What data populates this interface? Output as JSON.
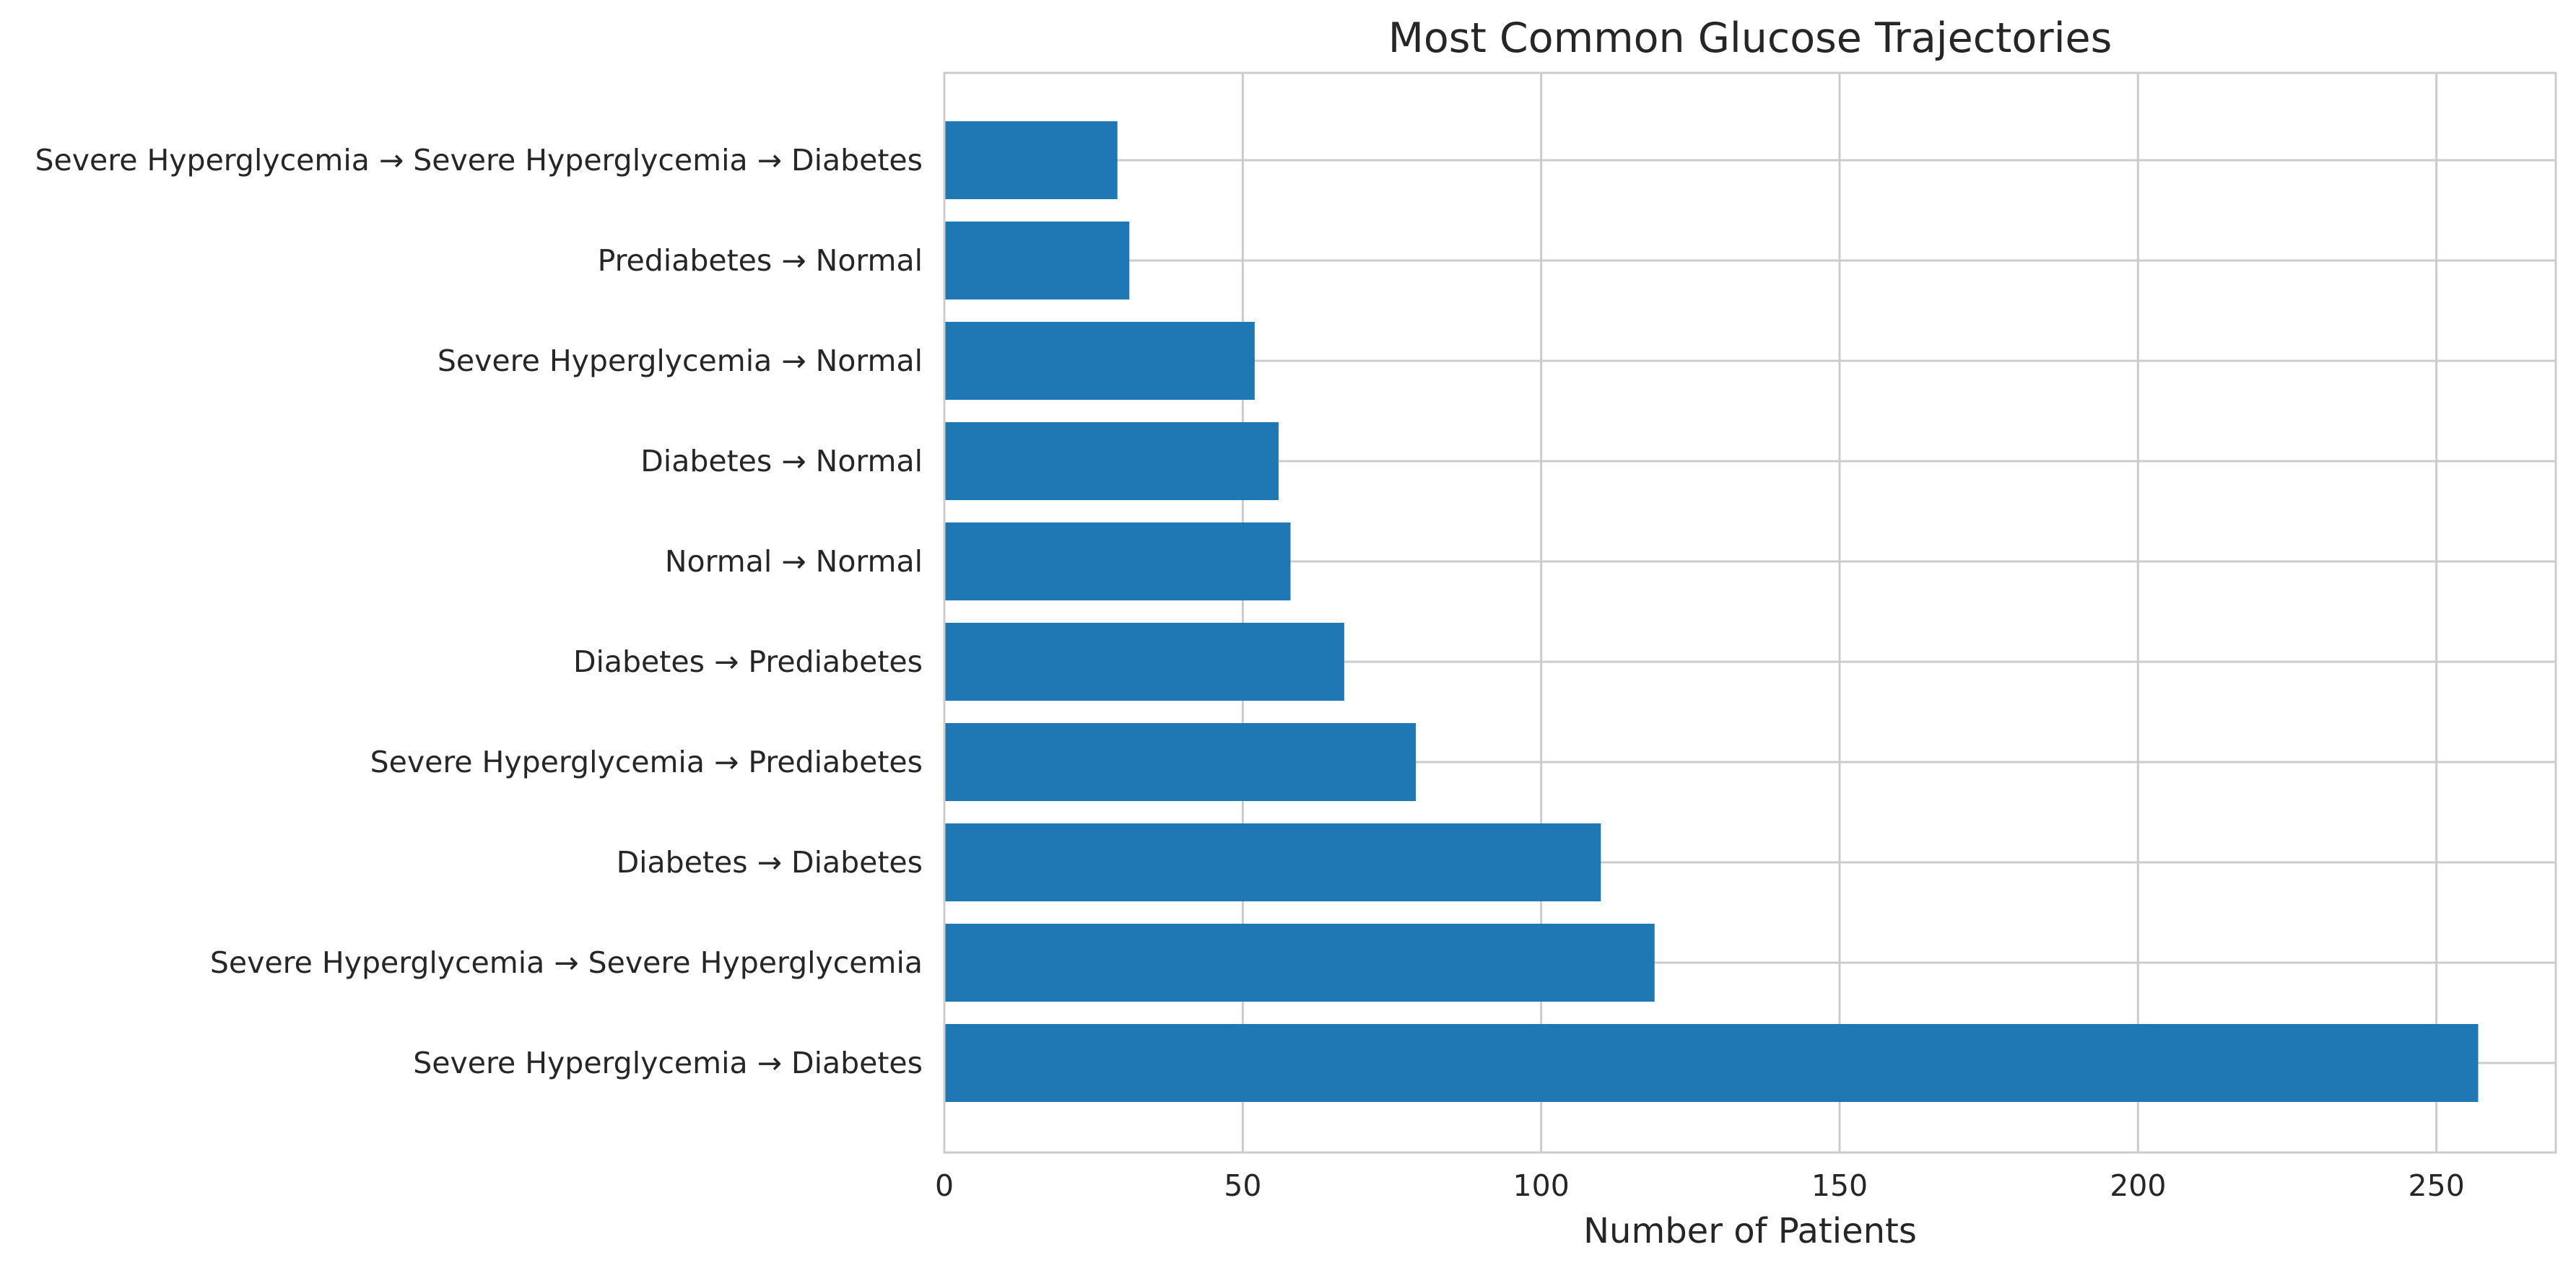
{
  "chart_data": {
    "type": "bar",
    "orientation": "horizontal",
    "title": "Most Common Glucose Trajectories",
    "xlabel": "Number of Patients",
    "ylabel": "",
    "categories": [
      "Severe Hyperglycemia → Diabetes",
      "Severe Hyperglycemia → Severe Hyperglycemia",
      "Diabetes → Diabetes",
      "Severe Hyperglycemia → Prediabetes",
      "Diabetes → Prediabetes",
      "Normal → Normal",
      "Diabetes → Normal",
      "Severe Hyperglycemia → Normal",
      "Prediabetes → Normal",
      "Severe Hyperglycemia → Severe Hyperglycemia → Diabetes"
    ],
    "values": [
      257,
      119,
      110,
      79,
      67,
      58,
      56,
      52,
      31,
      29
    ],
    "xlim": [
      0,
      270
    ],
    "xticks": [
      0,
      50,
      100,
      150,
      200,
      250
    ],
    "grid": true,
    "legend": "none",
    "colors": {
      "bar": "#1f77b4",
      "grid": "#cccccc",
      "spine": "#cccccc",
      "text": "#262626",
      "background": "#ffffff"
    }
  }
}
